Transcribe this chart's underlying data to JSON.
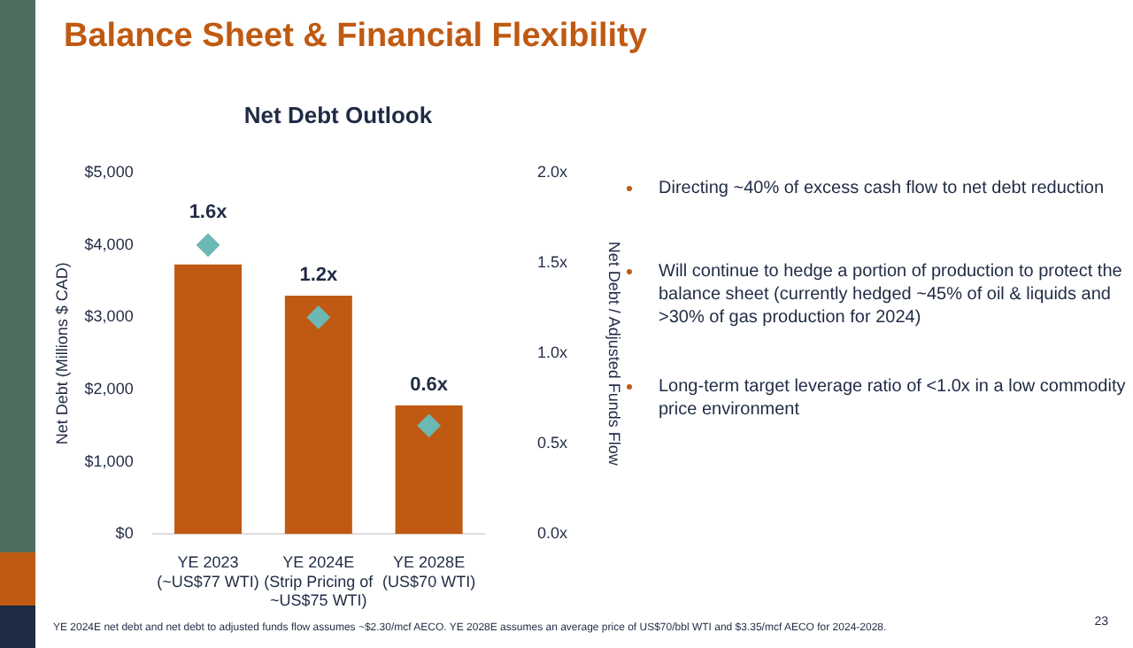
{
  "chart_data": {
    "type": "bar",
    "title": "Net Debt Outlook",
    "categories": [
      "YE 2023\n(~US$77 WTI)",
      "YE 2024E\n(Strip Pricing of\n~US$75 WTI)",
      "YE 2028E\n(US$70 WTI)"
    ],
    "series": [
      {
        "color": "#c05a12",
        "values": [
          3730,
          3300,
          1780
        ]
      },
      {
        "type": "scatter",
        "axis": "y2",
        "marker": "diamond",
        "color": "#6cb8b4",
        "values": [
          1.6,
          1.2,
          0.6
        ],
        "value_labels": [
          "1.6x",
          "1.2x",
          "0.6x"
        ]
      }
    ],
    "ylabel": "Net Debt (Millions $ CAD)",
    "y2label": "Net Debt / Adjusted Funds Flow",
    "ylim": [
      0,
      5000
    ],
    "yticks": [
      {
        "value": 0,
        "label": "$0"
      },
      {
        "value": 1000,
        "label": "$1,000"
      },
      {
        "value": 2000,
        "label": "$2,000"
      },
      {
        "value": 3000,
        "label": "$3,000"
      },
      {
        "value": 4000,
        "label": "$4,000"
      },
      {
        "value": 5000,
        "label": "$5,000"
      }
    ],
    "y2lim": [
      0,
      2
    ],
    "y2ticks": [
      {
        "value": 0,
        "label": "0.0x"
      },
      {
        "value": 0.5,
        "label": "0.5x"
      },
      {
        "value": 1,
        "label": "1.0x"
      },
      {
        "value": 1.5,
        "label": "1.5x"
      },
      {
        "value": 2,
        "label": "2.0x"
      }
    ],
    "grid": false,
    "annotations": [
      "Balance Sheet & Financial Flexibility",
      "Directing ~40% of excess cash flow to net debt reduction",
      "Will continue to hedge a portion of production to protect the balance sheet (currently hedged ~45% of oil & liquids and >30% of gas production for 2024)",
      "Long-term target leverage ratio of <1.0x in a low commodity price environment",
      "YE 2024E net debt and net debt to adjusted funds flow assumes ~$2.30/mcf AECO. YE 2028E assumes an average price of US$70/bbl WTI and $3.35/mcf AECO for 2024-2028.",
      "23"
    ]
  }
}
